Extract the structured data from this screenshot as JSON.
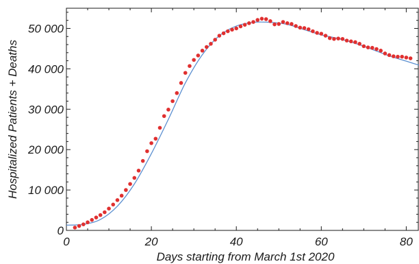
{
  "chart_data": {
    "type": "scatter",
    "title": "",
    "xlabel": "Days starting from March 1st 2020",
    "ylabel": "Hospitalized Patients + Deaths",
    "xlim": [
      0,
      83
    ],
    "ylim": [
      0,
      55000
    ],
    "x_ticks": [
      0,
      20,
      40,
      60,
      80
    ],
    "x_tick_labels": [
      "0",
      "20",
      "40",
      "60",
      "80"
    ],
    "y_ticks": [
      0,
      10000,
      20000,
      30000,
      40000,
      50000
    ],
    "y_tick_labels": [
      "0",
      "10 000",
      "20 000",
      "30 000",
      "40 000",
      "50 000"
    ],
    "grid": false,
    "colors": {
      "points": "#e03030",
      "fit_line": "#5b8fd0"
    },
    "series": [
      {
        "kind": "points",
        "x": [
          2,
          3,
          4,
          5,
          6,
          7,
          8,
          9,
          10,
          11,
          12,
          13,
          14,
          15,
          16,
          17,
          18,
          19,
          20,
          21,
          22,
          23,
          24,
          25,
          26,
          27,
          28,
          29,
          30,
          31,
          32,
          33,
          34,
          35,
          36,
          37,
          38,
          39,
          40,
          41,
          42,
          43,
          44,
          45,
          46,
          47,
          48,
          49,
          50,
          51,
          52,
          53,
          54,
          55,
          56,
          57,
          58,
          59,
          60,
          61,
          62,
          63,
          64,
          65,
          66,
          67,
          68,
          69,
          70,
          71,
          72,
          73,
          74,
          75,
          76,
          77,
          78,
          79,
          80,
          81
        ],
        "y": [
          700,
          1100,
          1500,
          2000,
          2600,
          3200,
          3800,
          4500,
          5400,
          6400,
          7500,
          8600,
          10000,
          11500,
          13000,
          14800,
          17200,
          19600,
          21600,
          22700,
          25400,
          28300,
          29900,
          32000,
          34000,
          36500,
          39000,
          40700,
          42200,
          43300,
          44500,
          45400,
          46200,
          47200,
          48200,
          48800,
          49300,
          49700,
          50000,
          50500,
          50900,
          51300,
          51600,
          52100,
          52400,
          52300,
          51800,
          51000,
          51100,
          51600,
          51300,
          51100,
          50600,
          50200,
          50100,
          49800,
          49300,
          48900,
          48700,
          48200,
          47600,
          47400,
          47500,
          47400,
          47000,
          46800,
          46600,
          46200,
          45600,
          45300,
          45200,
          44900,
          44500,
          43800,
          43400,
          43100,
          43000,
          43000,
          42800,
          42600
        ]
      },
      {
        "kind": "fit-curve",
        "x": [
          0,
          4,
          8,
          12,
          16,
          20,
          24,
          28,
          32,
          36,
          40,
          44,
          48,
          52,
          56,
          60,
          64,
          68,
          72,
          76,
          80,
          83
        ],
        "y": [
          1300,
          1500,
          2700,
          6000,
          11500,
          19000,
          27500,
          36500,
          43500,
          48200,
          50600,
          51500,
          51500,
          51000,
          49700,
          48400,
          47500,
          46300,
          44800,
          43200,
          41900,
          40900
        ]
      }
    ]
  }
}
